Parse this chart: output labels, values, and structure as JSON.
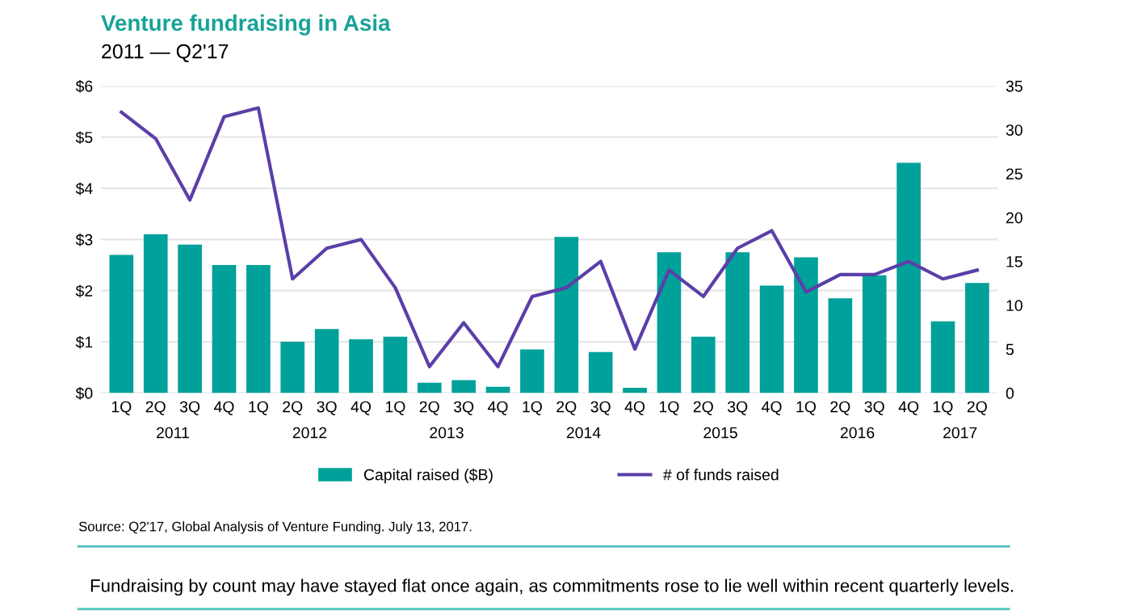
{
  "chart_data": {
    "type": "bar",
    "title": "Venture fundraising in Asia",
    "subtitle": "2011 — Q2'17",
    "categories": [
      "1Q",
      "2Q",
      "3Q",
      "4Q",
      "1Q",
      "2Q",
      "3Q",
      "4Q",
      "1Q",
      "2Q",
      "3Q",
      "4Q",
      "1Q",
      "2Q",
      "3Q",
      "4Q",
      "1Q",
      "2Q",
      "3Q",
      "4Q",
      "1Q",
      "2Q",
      "3Q",
      "4Q",
      "1Q",
      "2Q"
    ],
    "series": [
      {
        "name": "Capital raised ($B)",
        "color": "#00a19a",
        "values": [
          2.7,
          3.1,
          2.9,
          2.5,
          2.5,
          1.0,
          1.25,
          1.05,
          1.1,
          0.2,
          0.25,
          0.12,
          0.85,
          3.05,
          0.8,
          0.1,
          2.75,
          1.1,
          2.75,
          2.1,
          2.65,
          1.85,
          2.3,
          4.5,
          1.4,
          2.15
        ]
      },
      {
        "name": "# of funds raised",
        "type": "line",
        "axis": "y2",
        "color": "#5b3fa8",
        "values": [
          32,
          29,
          22,
          31.5,
          32.5,
          13,
          16.5,
          17.5,
          12,
          3,
          8,
          3,
          11,
          12,
          15,
          5,
          14,
          11,
          16.5,
          18.5,
          11.5,
          13.5,
          13.5,
          15,
          13,
          14
        ]
      }
    ],
    "ylim": [
      0,
      6
    ],
    "yticks": [
      {
        "value": 0,
        "label": "$0"
      },
      {
        "value": 1,
        "label": "$1"
      },
      {
        "value": 2,
        "label": "$2"
      },
      {
        "value": 3,
        "label": "$3"
      },
      {
        "value": 4,
        "label": "$4"
      },
      {
        "value": 5,
        "label": "$5"
      },
      {
        "value": 6,
        "label": "$6"
      }
    ],
    "y2lim": [
      0,
      35
    ],
    "y2ticks": [
      0,
      5,
      10,
      15,
      20,
      25,
      30,
      35
    ],
    "grid": "y",
    "legend": "bottom",
    "annotations": [
      "Source: Q2'17, Global Analysis of Venture Funding. July 13, 2017.",
      "Fundraising by count may have stayed flat once again, as commitments rose to lie well within recent quarterly levels.",
      "2011",
      "2012",
      "2013",
      "2014",
      "2015",
      "2016",
      "2017"
    ]
  }
}
